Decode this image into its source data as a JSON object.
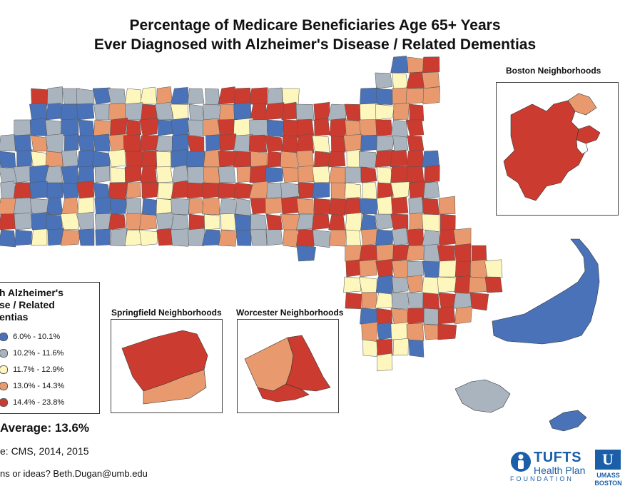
{
  "title": {
    "line1": "Percentage of Medicare Beneficiaries Age 65+ Years",
    "line2": "Ever Diagnosed with Alzheimer's Disease / Related Dementias"
  },
  "insets": {
    "boston": "Boston Neighborhoods",
    "springfield": "Springfield Neighborhoods",
    "worcester": "Worcester Neighborhoods"
  },
  "legend": {
    "title_line1": "h Alzheimer's",
    "title_line2": "se / Related",
    "title_line3": "entias",
    "classes": [
      {
        "label": "6.0% - 10.1%",
        "color": "#4a72b8"
      },
      {
        "label": "10.2% - 11.6%",
        "color": "#a9b4bf"
      },
      {
        "label": "11.7% - 12.9%",
        "color": "#fdf6bd"
      },
      {
        "label": "13.0% - 14.3%",
        "color": "#e89a6e"
      },
      {
        "label": "14.4% - 23.8%",
        "color": "#cc3b2f"
      }
    ]
  },
  "state_average": "Average: 13.6%",
  "source": "e: CMS, 2014, 2015",
  "contact": "ns or ideas? Beth.Dugan@umb.edu",
  "logos": {
    "tufts_name": "TUFTS",
    "tufts_sub": "Health Plan",
    "tufts_foundation": "FOUNDATION",
    "umass_line1": "UMASS",
    "umass_line2": "BOSTON"
  },
  "colors": {
    "border": "#555555",
    "land": "#cc3b2f"
  }
}
